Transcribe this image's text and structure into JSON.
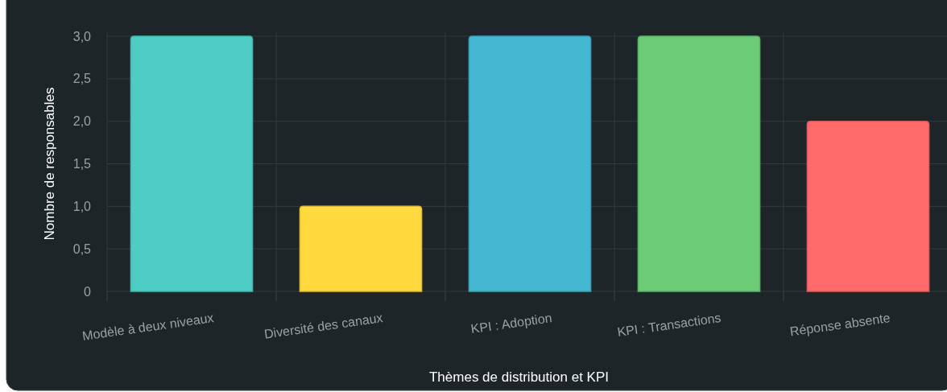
{
  "chart_data": {
    "type": "bar",
    "xlabel": "Thèmes de distribution et KPI",
    "ylabel": "Nombre de responsables",
    "categories": [
      "Modèle à deux niveaux",
      "Diversité des canaux",
      "KPI : Adoption",
      "KPI : Transactions",
      "Réponse absente"
    ],
    "values": [
      3,
      1,
      3,
      3,
      2
    ],
    "colors": [
      "#4ecdc4",
      "#ffd93d",
      "#45b7d1",
      "#6bcb77",
      "#ff6b6b"
    ],
    "ylim": [
      0,
      3
    ],
    "yticks": [
      0,
      {
        "value": 0.5,
        "label": "0,5"
      },
      {
        "value": 1,
        "label": "1,0"
      },
      {
        "value": 1.5,
        "label": "1,5"
      },
      {
        "value": 2,
        "label": "2,0"
      },
      {
        "value": 2.5,
        "label": "2,5"
      },
      {
        "value": 3,
        "label": "3,0"
      }
    ],
    "grid": true
  }
}
